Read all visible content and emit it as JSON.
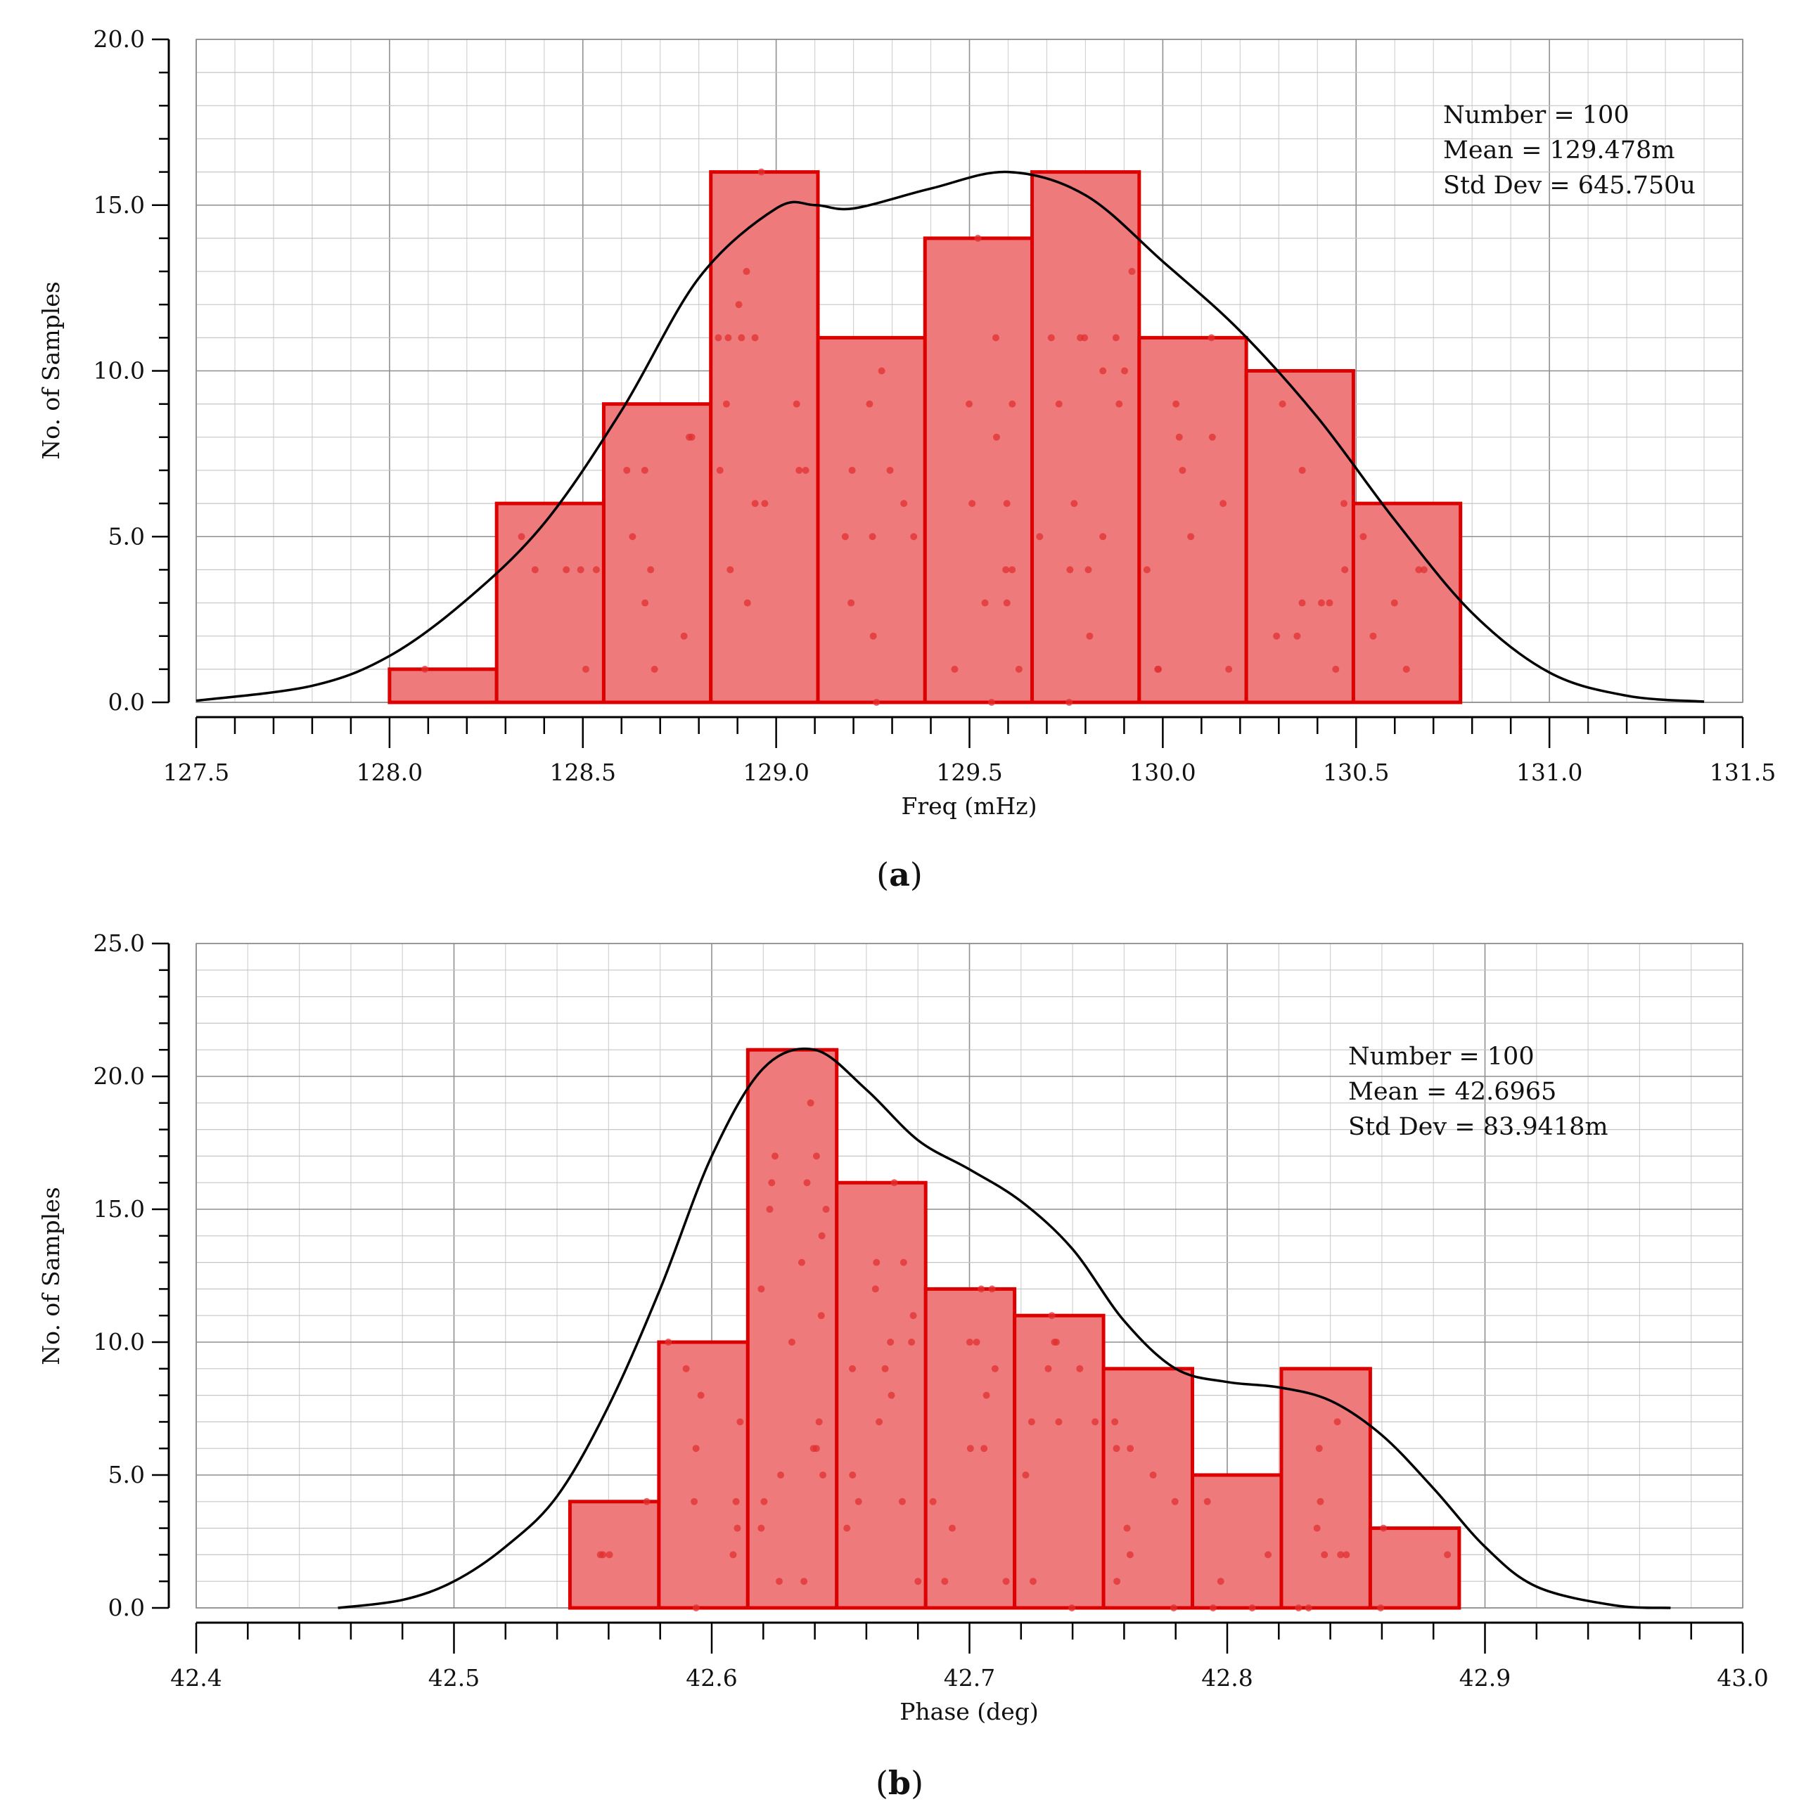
{
  "chart_data": [
    {
      "type": "histogram",
      "panel_label": "a",
      "xlabel": "Freq (mHz)",
      "ylabel": "No. of Samples",
      "xlim": [
        127.5,
        131.5
      ],
      "ylim": [
        0,
        20
      ],
      "x_ticks": [
        127.5,
        128.0,
        128.5,
        129.0,
        129.5,
        130.0,
        130.5,
        131.0,
        131.5
      ],
      "x_tick_labels": [
        "127.5",
        "128.0",
        "128.5",
        "129.0",
        "129.5",
        "130.0",
        "130.5",
        "131.0",
        "131.5"
      ],
      "y_ticks": [
        0,
        5,
        10,
        15,
        20
      ],
      "y_tick_labels": [
        "0.0",
        "5.0",
        "10.0",
        "15.0",
        "20.0"
      ],
      "y_grid_step": 1,
      "x_minor_step": 0.1,
      "bin_edges": [
        128.0,
        128.277,
        128.554,
        128.831,
        129.108,
        129.385,
        129.662,
        129.939,
        130.216,
        130.493,
        130.77
      ],
      "counts": [
        1,
        6,
        9,
        16,
        11,
        14,
        16,
        11,
        10,
        6
      ],
      "stats": [
        "Number = 100",
        "Mean = 129.478m",
        "Std Dev = 645.750u"
      ],
      "fit_curve": {
        "x": [
          127.5,
          127.8,
          128.0,
          128.2,
          128.4,
          128.6,
          128.8,
          129.0,
          129.1,
          129.2,
          129.4,
          129.6,
          129.8,
          130.0,
          130.2,
          130.4,
          130.6,
          130.8,
          131.0,
          131.2,
          131.4
        ],
        "y": [
          0.05,
          0.5,
          1.4,
          3.1,
          5.4,
          8.8,
          12.8,
          14.9,
          15.0,
          14.9,
          15.5,
          16.0,
          15.3,
          13.3,
          11.2,
          8.6,
          5.5,
          2.7,
          0.9,
          0.2,
          0.02
        ]
      },
      "colors": {
        "bar_fill": "#ee7a7b",
        "bar_edge": "#dd0000",
        "curve": "#000000",
        "grid": "#a6a6a6"
      }
    },
    {
      "type": "histogram",
      "panel_label": "b",
      "xlabel": "Phase (deg)",
      "ylabel": "No. of Samples",
      "xlim": [
        42.4,
        43.0
      ],
      "ylim": [
        0,
        25
      ],
      "x_ticks": [
        42.4,
        42.5,
        42.6,
        42.7,
        42.8,
        42.9,
        43.0
      ],
      "x_tick_labels": [
        "42.4",
        "42.5",
        "42.6",
        "42.7",
        "42.8",
        "42.9",
        "43.0"
      ],
      "y_ticks": [
        0,
        5,
        10,
        15,
        20,
        25
      ],
      "y_tick_labels": [
        "0.0",
        "5.0",
        "10.0",
        "15.0",
        "20.0",
        "25.0"
      ],
      "y_grid_step": 1,
      "x_minor_step": 0.02,
      "bin_edges": [
        42.545,
        42.5795,
        42.614,
        42.6485,
        42.683,
        42.7175,
        42.752,
        42.7865,
        42.821,
        42.8555,
        42.89
      ],
      "counts": [
        4,
        10,
        21,
        16,
        12,
        11,
        9,
        5,
        9,
        3
      ],
      "stats": [
        "Number = 100",
        "Mean = 42.6965",
        "Std Dev = 83.9418m"
      ],
      "fit_curve": {
        "x": [
          42.455,
          42.48,
          42.5,
          42.52,
          42.54,
          42.56,
          42.58,
          42.6,
          42.62,
          42.64,
          42.66,
          42.68,
          42.7,
          42.72,
          42.74,
          42.76,
          42.78,
          42.8,
          42.82,
          42.84,
          42.86,
          42.88,
          42.9,
          42.92,
          42.95,
          42.972
        ],
        "y": [
          0.0,
          0.3,
          1.0,
          2.3,
          4.2,
          7.6,
          12.0,
          17.0,
          20.3,
          21.0,
          19.5,
          17.6,
          16.5,
          15.3,
          13.5,
          10.8,
          9.0,
          8.5,
          8.3,
          7.8,
          6.5,
          4.5,
          2.3,
          0.8,
          0.1,
          0.0
        ]
      },
      "colors": {
        "bar_fill": "#ee7a7b",
        "bar_edge": "#dd0000",
        "curve": "#000000",
        "grid": "#a6a6a6"
      }
    }
  ]
}
